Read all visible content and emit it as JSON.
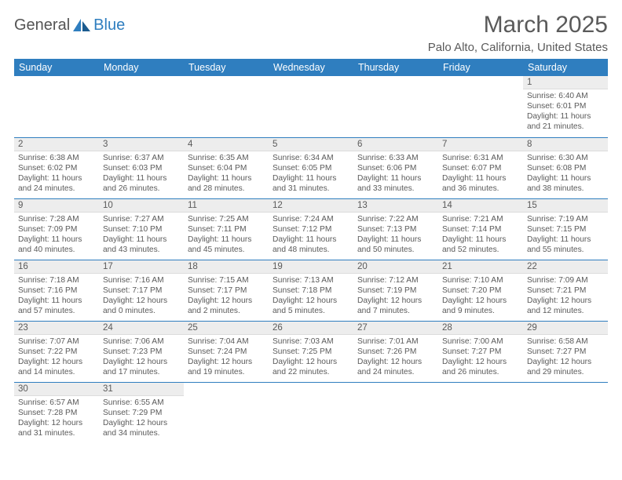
{
  "logo": {
    "text1": "General",
    "text2": "Blue"
  },
  "title": "March 2025",
  "location": "Palo Alto, California, United States",
  "colors": {
    "header_bg": "#2f7ebf",
    "text": "#5a5a5a",
    "daynum_bg": "#ededed",
    "border": "#2f7ebf"
  },
  "daynames": [
    "Sunday",
    "Monday",
    "Tuesday",
    "Wednesday",
    "Thursday",
    "Friday",
    "Saturday"
  ],
  "weeks": [
    [
      null,
      null,
      null,
      null,
      null,
      null,
      {
        "n": "1",
        "sr": "Sunrise: 6:40 AM",
        "ss": "Sunset: 6:01 PM",
        "dl": "Daylight: 11 hours and 21 minutes."
      }
    ],
    [
      {
        "n": "2",
        "sr": "Sunrise: 6:38 AM",
        "ss": "Sunset: 6:02 PM",
        "dl": "Daylight: 11 hours and 24 minutes."
      },
      {
        "n": "3",
        "sr": "Sunrise: 6:37 AM",
        "ss": "Sunset: 6:03 PM",
        "dl": "Daylight: 11 hours and 26 minutes."
      },
      {
        "n": "4",
        "sr": "Sunrise: 6:35 AM",
        "ss": "Sunset: 6:04 PM",
        "dl": "Daylight: 11 hours and 28 minutes."
      },
      {
        "n": "5",
        "sr": "Sunrise: 6:34 AM",
        "ss": "Sunset: 6:05 PM",
        "dl": "Daylight: 11 hours and 31 minutes."
      },
      {
        "n": "6",
        "sr": "Sunrise: 6:33 AM",
        "ss": "Sunset: 6:06 PM",
        "dl": "Daylight: 11 hours and 33 minutes."
      },
      {
        "n": "7",
        "sr": "Sunrise: 6:31 AM",
        "ss": "Sunset: 6:07 PM",
        "dl": "Daylight: 11 hours and 36 minutes."
      },
      {
        "n": "8",
        "sr": "Sunrise: 6:30 AM",
        "ss": "Sunset: 6:08 PM",
        "dl": "Daylight: 11 hours and 38 minutes."
      }
    ],
    [
      {
        "n": "9",
        "sr": "Sunrise: 7:28 AM",
        "ss": "Sunset: 7:09 PM",
        "dl": "Daylight: 11 hours and 40 minutes."
      },
      {
        "n": "10",
        "sr": "Sunrise: 7:27 AM",
        "ss": "Sunset: 7:10 PM",
        "dl": "Daylight: 11 hours and 43 minutes."
      },
      {
        "n": "11",
        "sr": "Sunrise: 7:25 AM",
        "ss": "Sunset: 7:11 PM",
        "dl": "Daylight: 11 hours and 45 minutes."
      },
      {
        "n": "12",
        "sr": "Sunrise: 7:24 AM",
        "ss": "Sunset: 7:12 PM",
        "dl": "Daylight: 11 hours and 48 minutes."
      },
      {
        "n": "13",
        "sr": "Sunrise: 7:22 AM",
        "ss": "Sunset: 7:13 PM",
        "dl": "Daylight: 11 hours and 50 minutes."
      },
      {
        "n": "14",
        "sr": "Sunrise: 7:21 AM",
        "ss": "Sunset: 7:14 PM",
        "dl": "Daylight: 11 hours and 52 minutes."
      },
      {
        "n": "15",
        "sr": "Sunrise: 7:19 AM",
        "ss": "Sunset: 7:15 PM",
        "dl": "Daylight: 11 hours and 55 minutes."
      }
    ],
    [
      {
        "n": "16",
        "sr": "Sunrise: 7:18 AM",
        "ss": "Sunset: 7:16 PM",
        "dl": "Daylight: 11 hours and 57 minutes."
      },
      {
        "n": "17",
        "sr": "Sunrise: 7:16 AM",
        "ss": "Sunset: 7:17 PM",
        "dl": "Daylight: 12 hours and 0 minutes."
      },
      {
        "n": "18",
        "sr": "Sunrise: 7:15 AM",
        "ss": "Sunset: 7:17 PM",
        "dl": "Daylight: 12 hours and 2 minutes."
      },
      {
        "n": "19",
        "sr": "Sunrise: 7:13 AM",
        "ss": "Sunset: 7:18 PM",
        "dl": "Daylight: 12 hours and 5 minutes."
      },
      {
        "n": "20",
        "sr": "Sunrise: 7:12 AM",
        "ss": "Sunset: 7:19 PM",
        "dl": "Daylight: 12 hours and 7 minutes."
      },
      {
        "n": "21",
        "sr": "Sunrise: 7:10 AM",
        "ss": "Sunset: 7:20 PM",
        "dl": "Daylight: 12 hours and 9 minutes."
      },
      {
        "n": "22",
        "sr": "Sunrise: 7:09 AM",
        "ss": "Sunset: 7:21 PM",
        "dl": "Daylight: 12 hours and 12 minutes."
      }
    ],
    [
      {
        "n": "23",
        "sr": "Sunrise: 7:07 AM",
        "ss": "Sunset: 7:22 PM",
        "dl": "Daylight: 12 hours and 14 minutes."
      },
      {
        "n": "24",
        "sr": "Sunrise: 7:06 AM",
        "ss": "Sunset: 7:23 PM",
        "dl": "Daylight: 12 hours and 17 minutes."
      },
      {
        "n": "25",
        "sr": "Sunrise: 7:04 AM",
        "ss": "Sunset: 7:24 PM",
        "dl": "Daylight: 12 hours and 19 minutes."
      },
      {
        "n": "26",
        "sr": "Sunrise: 7:03 AM",
        "ss": "Sunset: 7:25 PM",
        "dl": "Daylight: 12 hours and 22 minutes."
      },
      {
        "n": "27",
        "sr": "Sunrise: 7:01 AM",
        "ss": "Sunset: 7:26 PM",
        "dl": "Daylight: 12 hours and 24 minutes."
      },
      {
        "n": "28",
        "sr": "Sunrise: 7:00 AM",
        "ss": "Sunset: 7:27 PM",
        "dl": "Daylight: 12 hours and 26 minutes."
      },
      {
        "n": "29",
        "sr": "Sunrise: 6:58 AM",
        "ss": "Sunset: 7:27 PM",
        "dl": "Daylight: 12 hours and 29 minutes."
      }
    ],
    [
      {
        "n": "30",
        "sr": "Sunrise: 6:57 AM",
        "ss": "Sunset: 7:28 PM",
        "dl": "Daylight: 12 hours and 31 minutes."
      },
      {
        "n": "31",
        "sr": "Sunrise: 6:55 AM",
        "ss": "Sunset: 7:29 PM",
        "dl": "Daylight: 12 hours and 34 minutes."
      },
      null,
      null,
      null,
      null,
      null
    ]
  ]
}
